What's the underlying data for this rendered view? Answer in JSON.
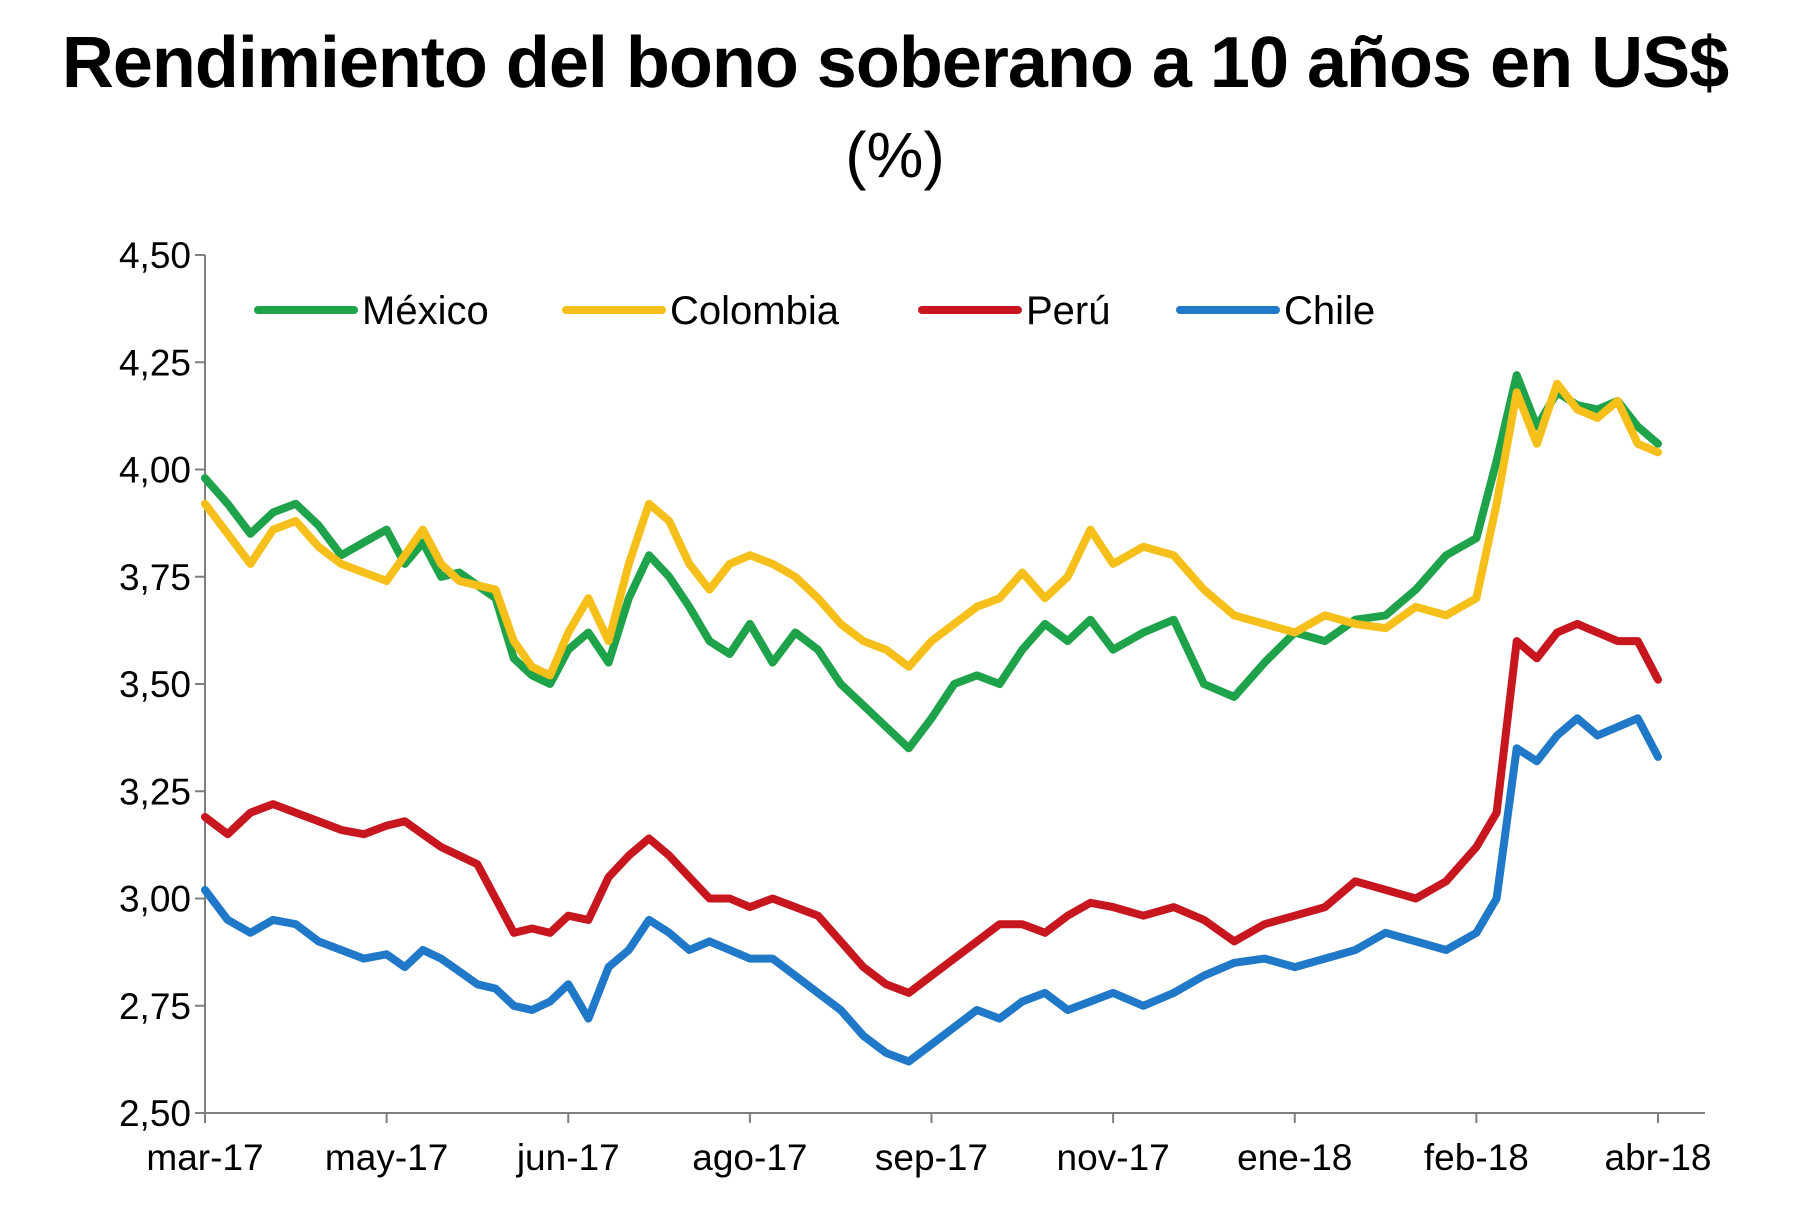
{
  "chart_data": {
    "type": "line",
    "title": "Rendimiento del bono soberano a 10 años en US$",
    "subtitle": "(%)",
    "xlabel": "",
    "ylabel": "",
    "ylim": [
      2.5,
      4.5
    ],
    "y_ticks": [
      "4,50",
      "4,25",
      "4,00",
      "3,75",
      "3,50",
      "3,25",
      "3,00",
      "2,75",
      "2,50"
    ],
    "y_tick_values": [
      4.5,
      4.25,
      4.0,
      3.75,
      3.5,
      3.25,
      3.0,
      2.75,
      2.5
    ],
    "x_ticks": [
      "mar-17",
      "may-17",
      "jun-17",
      "ago-17",
      "sep-17",
      "nov-17",
      "ene-18",
      "feb-18",
      "abr-18"
    ],
    "grid": false,
    "legend_position": "top",
    "series": [
      {
        "name": "México",
        "color": "#1fa34a",
        "x": [
          "mar-17",
          "mar-17",
          "mar-17",
          "mar-17",
          "mar-17",
          "mar-17",
          "mar-17",
          "mar-17",
          "may-17",
          "may-17",
          "may-17",
          "may-17",
          "may-17",
          "may-17",
          "may-17",
          "may-17",
          "may-17",
          "may-17",
          "jun-17",
          "jun-17",
          "jun-17",
          "jun-17",
          "jun-17",
          "jun-17",
          "jun-17",
          "jun-17",
          "jun-17",
          "ago-17",
          "ago-17",
          "ago-17",
          "ago-17",
          "ago-17",
          "ago-17",
          "ago-17",
          "ago-17",
          "sep-17",
          "sep-17",
          "sep-17",
          "sep-17",
          "sep-17",
          "sep-17",
          "sep-17",
          "sep-17",
          "nov-17",
          "nov-17",
          "nov-17",
          "nov-17",
          "nov-17",
          "nov-17",
          "ene-18",
          "ene-18",
          "ene-18",
          "ene-18",
          "ene-18",
          "ene-18",
          "feb-18",
          "feb-18",
          "feb-18",
          "feb-18",
          "feb-18",
          "feb-18",
          "feb-18",
          "feb-18",
          "feb-18",
          "abr-18"
        ],
        "y": [
          3.98,
          3.92,
          3.85,
          3.9,
          3.92,
          3.87,
          3.8,
          3.83,
          3.86,
          3.78,
          3.83,
          3.75,
          3.76,
          3.73,
          3.7,
          3.56,
          3.52,
          3.5,
          3.58,
          3.62,
          3.55,
          3.7,
          3.8,
          3.75,
          3.68,
          3.6,
          3.57,
          3.64,
          3.55,
          3.62,
          3.58,
          3.5,
          3.45,
          3.4,
          3.35,
          3.42,
          3.5,
          3.52,
          3.5,
          3.58,
          3.64,
          3.6,
          3.65,
          3.58,
          3.62,
          3.65,
          3.5,
          3.47,
          3.55,
          3.62,
          3.6,
          3.65,
          3.66,
          3.72,
          3.8,
          3.84,
          4.02,
          4.22,
          4.1,
          4.18,
          4.15,
          4.14,
          4.16,
          4.1,
          4.06
        ]
      },
      {
        "name": "Colombia",
        "color": "#f7bf19",
        "x": [
          "mar-17",
          "mar-17",
          "mar-17",
          "mar-17",
          "mar-17",
          "mar-17",
          "mar-17",
          "mar-17",
          "may-17",
          "may-17",
          "may-17",
          "may-17",
          "may-17",
          "may-17",
          "may-17",
          "may-17",
          "may-17",
          "may-17",
          "jun-17",
          "jun-17",
          "jun-17",
          "jun-17",
          "jun-17",
          "jun-17",
          "jun-17",
          "jun-17",
          "jun-17",
          "ago-17",
          "ago-17",
          "ago-17",
          "ago-17",
          "ago-17",
          "ago-17",
          "ago-17",
          "ago-17",
          "sep-17",
          "sep-17",
          "sep-17",
          "sep-17",
          "sep-17",
          "sep-17",
          "sep-17",
          "sep-17",
          "nov-17",
          "nov-17",
          "nov-17",
          "nov-17",
          "nov-17",
          "nov-17",
          "ene-18",
          "ene-18",
          "ene-18",
          "ene-18",
          "ene-18",
          "ene-18",
          "feb-18",
          "feb-18",
          "feb-18",
          "feb-18",
          "feb-18",
          "feb-18",
          "feb-18",
          "feb-18",
          "feb-18",
          "abr-18"
        ],
        "y": [
          3.92,
          3.85,
          3.78,
          3.86,
          3.88,
          3.82,
          3.78,
          3.76,
          3.74,
          3.8,
          3.86,
          3.78,
          3.74,
          3.73,
          3.72,
          3.6,
          3.54,
          3.52,
          3.62,
          3.7,
          3.6,
          3.78,
          3.92,
          3.88,
          3.78,
          3.72,
          3.78,
          3.8,
          3.78,
          3.75,
          3.7,
          3.64,
          3.6,
          3.58,
          3.54,
          3.6,
          3.64,
          3.68,
          3.7,
          3.76,
          3.7,
          3.75,
          3.86,
          3.78,
          3.82,
          3.8,
          3.72,
          3.66,
          3.64,
          3.62,
          3.66,
          3.64,
          3.63,
          3.68,
          3.66,
          3.7,
          3.92,
          4.18,
          4.06,
          4.2,
          4.14,
          4.12,
          4.16,
          4.06,
          4.04
        ]
      },
      {
        "name": "Perú",
        "color": "#c8161e",
        "x": [
          "mar-17",
          "mar-17",
          "mar-17",
          "mar-17",
          "mar-17",
          "mar-17",
          "mar-17",
          "mar-17",
          "may-17",
          "may-17",
          "may-17",
          "may-17",
          "may-17",
          "may-17",
          "may-17",
          "may-17",
          "may-17",
          "may-17",
          "jun-17",
          "jun-17",
          "jun-17",
          "jun-17",
          "jun-17",
          "jun-17",
          "jun-17",
          "jun-17",
          "jun-17",
          "ago-17",
          "ago-17",
          "ago-17",
          "ago-17",
          "ago-17",
          "ago-17",
          "ago-17",
          "ago-17",
          "sep-17",
          "sep-17",
          "sep-17",
          "sep-17",
          "sep-17",
          "sep-17",
          "sep-17",
          "sep-17",
          "nov-17",
          "nov-17",
          "nov-17",
          "nov-17",
          "nov-17",
          "nov-17",
          "ene-18",
          "ene-18",
          "ene-18",
          "ene-18",
          "ene-18",
          "ene-18",
          "feb-18",
          "feb-18",
          "feb-18",
          "feb-18",
          "feb-18",
          "feb-18",
          "feb-18",
          "feb-18",
          "feb-18",
          "abr-18"
        ],
        "y": [
          3.19,
          3.15,
          3.2,
          3.22,
          3.2,
          3.18,
          3.16,
          3.15,
          3.17,
          3.18,
          3.15,
          3.12,
          3.1,
          3.08,
          3.0,
          2.92,
          2.93,
          2.92,
          2.96,
          2.95,
          3.05,
          3.1,
          3.14,
          3.1,
          3.05,
          3.0,
          3.0,
          2.98,
          3.0,
          2.98,
          2.96,
          2.9,
          2.84,
          2.8,
          2.78,
          2.82,
          2.86,
          2.9,
          2.94,
          2.94,
          2.92,
          2.96,
          2.99,
          2.98,
          2.96,
          2.98,
          2.95,
          2.9,
          2.94,
          2.96,
          2.98,
          3.04,
          3.02,
          3.0,
          3.04,
          3.12,
          3.2,
          3.6,
          3.56,
          3.62,
          3.64,
          3.62,
          3.6,
          3.6,
          3.51
        ]
      },
      {
        "name": "Chile",
        "color": "#1f78c8",
        "x": [
          "mar-17",
          "mar-17",
          "mar-17",
          "mar-17",
          "mar-17",
          "mar-17",
          "mar-17",
          "mar-17",
          "may-17",
          "may-17",
          "may-17",
          "may-17",
          "may-17",
          "may-17",
          "may-17",
          "may-17",
          "may-17",
          "may-17",
          "jun-17",
          "jun-17",
          "jun-17",
          "jun-17",
          "jun-17",
          "jun-17",
          "jun-17",
          "jun-17",
          "jun-17",
          "ago-17",
          "ago-17",
          "ago-17",
          "ago-17",
          "ago-17",
          "ago-17",
          "ago-17",
          "ago-17",
          "sep-17",
          "sep-17",
          "sep-17",
          "sep-17",
          "sep-17",
          "sep-17",
          "sep-17",
          "sep-17",
          "nov-17",
          "nov-17",
          "nov-17",
          "nov-17",
          "nov-17",
          "nov-17",
          "ene-18",
          "ene-18",
          "ene-18",
          "ene-18",
          "ene-18",
          "ene-18",
          "feb-18",
          "feb-18",
          "feb-18",
          "feb-18",
          "feb-18",
          "feb-18",
          "feb-18",
          "feb-18",
          "feb-18",
          "abr-18"
        ],
        "y": [
          3.02,
          2.95,
          2.92,
          2.95,
          2.94,
          2.9,
          2.88,
          2.86,
          2.87,
          2.84,
          2.88,
          2.86,
          2.83,
          2.8,
          2.79,
          2.75,
          2.74,
          2.76,
          2.8,
          2.72,
          2.84,
          2.88,
          2.95,
          2.92,
          2.88,
          2.9,
          2.88,
          2.86,
          2.86,
          2.82,
          2.78,
          2.74,
          2.68,
          2.64,
          2.62,
          2.66,
          2.7,
          2.74,
          2.72,
          2.76,
          2.78,
          2.74,
          2.76,
          2.78,
          2.75,
          2.78,
          2.82,
          2.85,
          2.86,
          2.84,
          2.86,
          2.88,
          2.92,
          2.9,
          2.88,
          2.92,
          3.0,
          3.35,
          3.32,
          3.38,
          3.42,
          3.38,
          3.4,
          3.42,
          3.33
        ]
      }
    ]
  }
}
